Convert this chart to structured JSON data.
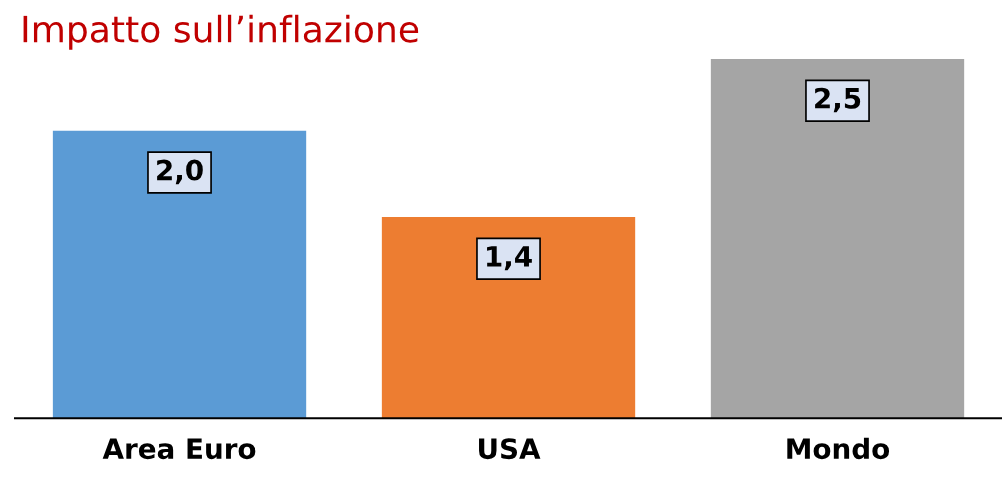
{
  "chart_data": {
    "type": "bar",
    "title": "Impatto sull’inflazione",
    "categories": [
      "Area Euro",
      "USA",
      "Mondo"
    ],
    "values": [
      2.0,
      1.4,
      2.5
    ],
    "colors": [
      "#5b9bd5",
      "#ed7d31",
      "#a5a5a5"
    ],
    "value_labels": [
      "2,0",
      "1,4",
      "2,5"
    ],
    "grid": false,
    "legend": false,
    "tick_labels": "x"
  }
}
